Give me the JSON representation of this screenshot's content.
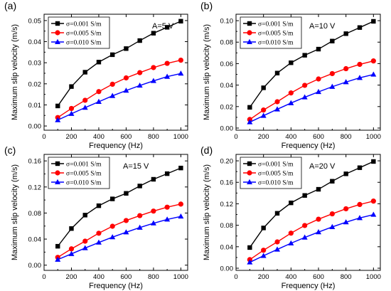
{
  "chart_data": [
    {
      "type": "line",
      "panel_label": "(a)",
      "annotation": "A=5 V",
      "xlabel": "Frequency (Hz)",
      "ylabel": "Maximum slip velocity (m/s)",
      "xlim": [
        0,
        1050
      ],
      "ylim": [
        -0.002,
        0.053
      ],
      "xticks": [
        0,
        200,
        400,
        600,
        800,
        1000
      ],
      "yticks": [
        0.0,
        0.01,
        0.02,
        0.03,
        0.04,
        0.05
      ],
      "ytick_labels": [
        "0.00",
        "0.01",
        "0.02",
        "0.03",
        "0.04",
        "0.05"
      ],
      "x": [
        100,
        200,
        300,
        400,
        500,
        600,
        700,
        800,
        900,
        1000
      ],
      "legend_position": "top-left",
      "series": [
        {
          "name": "σ=0.001 S/m",
          "color": "#000000",
          "marker": "square",
          "values": [
            0.0095,
            0.0187,
            0.0255,
            0.0303,
            0.0338,
            0.0367,
            0.0405,
            0.044,
            0.0468,
            0.0497
          ]
        },
        {
          "name": "σ=0.005 S/m",
          "color": "#ff0000",
          "marker": "circle",
          "values": [
            0.004,
            0.0083,
            0.0122,
            0.0163,
            0.0198,
            0.0228,
            0.0253,
            0.0277,
            0.0297,
            0.0312
          ]
        },
        {
          "name": "σ=0.010 S/m",
          "color": "#0000ff",
          "marker": "triangle",
          "values": [
            0.0028,
            0.0058,
            0.0087,
            0.0115,
            0.0143,
            0.0168,
            0.0192,
            0.0214,
            0.0234,
            0.0249
          ]
        }
      ]
    },
    {
      "type": "line",
      "panel_label": "(b)",
      "annotation": "A=10 V",
      "xlabel": "Frequency (Hz)",
      "ylabel": "Maximum slip velocity (m/s)",
      "xlim": [
        0,
        1050
      ],
      "ylim": [
        -0.002,
        0.106
      ],
      "xticks": [
        0,
        200,
        400,
        600,
        800,
        1000
      ],
      "yticks": [
        0.0,
        0.02,
        0.04,
        0.06,
        0.08,
        0.1
      ],
      "ytick_labels": [
        "0.00",
        "0.02",
        "0.04",
        "0.06",
        "0.08",
        "0.10"
      ],
      "x": [
        100,
        200,
        300,
        400,
        500,
        600,
        700,
        800,
        900,
        1000
      ],
      "legend_position": "top-left",
      "series": [
        {
          "name": "σ=0.001 S/m",
          "color": "#000000",
          "marker": "square",
          "values": [
            0.0193,
            0.0375,
            0.0512,
            0.0608,
            0.0678,
            0.0735,
            0.081,
            0.0879,
            0.0936,
            0.0994
          ]
        },
        {
          "name": "σ=0.005 S/m",
          "color": "#ff0000",
          "marker": "circle",
          "values": [
            0.008,
            0.0168,
            0.0245,
            0.0327,
            0.0398,
            0.0457,
            0.0507,
            0.0553,
            0.0593,
            0.0625
          ]
        },
        {
          "name": "σ=0.010 S/m",
          "color": "#0000ff",
          "marker": "triangle",
          "values": [
            0.0055,
            0.0115,
            0.0175,
            0.0233,
            0.0287,
            0.0337,
            0.0385,
            0.0428,
            0.0468,
            0.0499
          ]
        }
      ]
    },
    {
      "type": "line",
      "panel_label": "(c)",
      "annotation": "A=15 V",
      "xlabel": "Frequency (Hz)",
      "ylabel": "Maximum slip velocity (m/s)",
      "xlim": [
        0,
        1050
      ],
      "ylim": [
        -0.008,
        0.17
      ],
      "xticks": [
        0,
        200,
        400,
        600,
        800,
        1000
      ],
      "yticks": [
        0.0,
        0.04,
        0.08,
        0.12,
        0.16
      ],
      "ytick_labels": [
        "0.00",
        "0.04",
        "0.08",
        "0.12",
        "0.16"
      ],
      "x": [
        100,
        200,
        300,
        400,
        500,
        600,
        700,
        800,
        900,
        1000
      ],
      "legend_position": "top-left",
      "series": [
        {
          "name": "σ=0.001 S/m",
          "color": "#000000",
          "marker": "square",
          "values": [
            0.029,
            0.0562,
            0.0768,
            0.0912,
            0.1017,
            0.1102,
            0.1215,
            0.1318,
            0.1404,
            0.1491
          ]
        },
        {
          "name": "σ=0.005 S/m",
          "color": "#ff0000",
          "marker": "circle",
          "values": [
            0.012,
            0.025,
            0.0368,
            0.049,
            0.0597,
            0.0685,
            0.076,
            0.083,
            0.089,
            0.0937
          ]
        },
        {
          "name": "σ=0.010 S/m",
          "color": "#0000ff",
          "marker": "triangle",
          "values": [
            0.0085,
            0.0173,
            0.0262,
            0.0348,
            0.043,
            0.0505,
            0.0577,
            0.0643,
            0.0702,
            0.0748
          ]
        }
      ]
    },
    {
      "type": "line",
      "panel_label": "(d)",
      "annotation": "A=20 V",
      "xlabel": "Frequency (Hz)",
      "ylabel": "Maximum slip velocity (m/s)",
      "xlim": [
        0,
        1050
      ],
      "ylim": [
        -0.004,
        0.212
      ],
      "xticks": [
        0,
        200,
        400,
        600,
        800,
        1000
      ],
      "yticks": [
        0.0,
        0.04,
        0.08,
        0.12,
        0.16,
        0.2
      ],
      "ytick_labels": [
        "0.00",
        "0.04",
        "0.08",
        "0.12",
        "0.16",
        "0.20"
      ],
      "x": [
        100,
        200,
        300,
        400,
        500,
        600,
        700,
        800,
        900,
        1000
      ],
      "legend_position": "top-left",
      "series": [
        {
          "name": "σ=0.001 S/m",
          "color": "#000000",
          "marker": "square",
          "values": [
            0.0385,
            0.075,
            0.1023,
            0.1217,
            0.1355,
            0.147,
            0.162,
            0.1758,
            0.1872,
            0.1988
          ]
        },
        {
          "name": "σ=0.005 S/m",
          "color": "#ff0000",
          "marker": "circle",
          "values": [
            0.016,
            0.0335,
            0.049,
            0.0653,
            0.0796,
            0.0913,
            0.1013,
            0.1107,
            0.1187,
            0.125
          ]
        },
        {
          "name": "σ=0.010 S/m",
          "color": "#0000ff",
          "marker": "triangle",
          "values": [
            0.011,
            0.0231,
            0.035,
            0.0465,
            0.0573,
            0.0673,
            0.0769,
            0.0857,
            0.0936,
            0.0998
          ]
        }
      ]
    }
  ]
}
